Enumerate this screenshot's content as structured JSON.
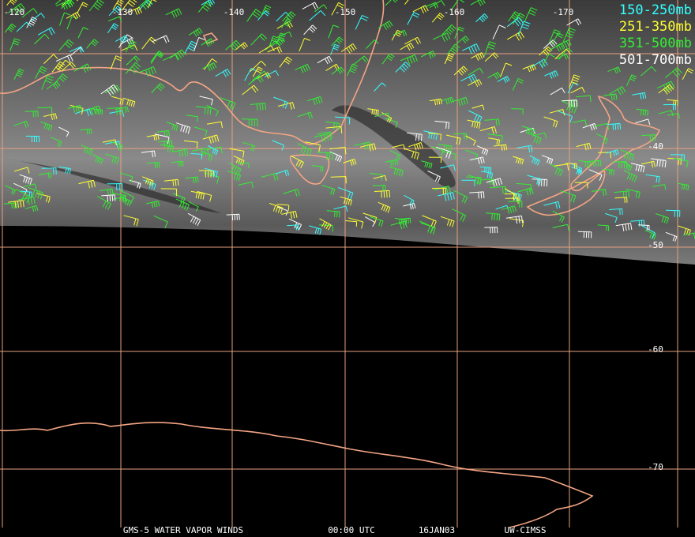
{
  "map": {
    "lon_labels": [
      "-120",
      "-130",
      "-140",
      "-150",
      "-160",
      "-170"
    ],
    "lat_labels": [
      "-40",
      "-50",
      "-60",
      "-70"
    ],
    "legend": [
      {
        "label": "150-250mb",
        "color": "#33ffff"
      },
      {
        "label": "251-350mb",
        "color": "#ffff33"
      },
      {
        "label": "351-500mb",
        "color": "#33ee33"
      },
      {
        "label": "501-700mb",
        "color": "#ffffff"
      }
    ],
    "footer": [
      "GMS-5 WATER VAPOR WINDS",
      "00:00 UTC",
      "16JAN03",
      "UW-CIMSS"
    ]
  }
}
